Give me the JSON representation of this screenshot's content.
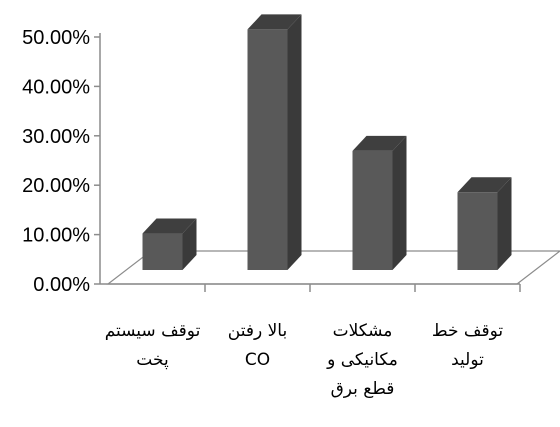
{
  "chart_data": {
    "type": "bar",
    "style": "3d-column",
    "categories": [
      [
        "توقف سیستم",
        "پخت"
      ],
      [
        "بالا رفتن",
        "CO"
      ],
      [
        "مشکلات",
        "مکانیکی و",
        "قطع برق"
      ],
      [
        "توقف خط",
        "تولید"
      ]
    ],
    "values": [
      7.5,
      49.5,
      24.5,
      16.0
    ],
    "ylim": [
      0,
      50
    ],
    "yticks": [
      "0.00%",
      "10.00%",
      "20.00%",
      "30.00%",
      "40.00%",
      "50.00%"
    ],
    "grid": false,
    "legend": "none",
    "colors": {
      "bar_front": "#595959",
      "bar_side": "#3a3a3a",
      "bar_top": "#3f3f3f",
      "floor": "#ffffff",
      "axis": "#8c8c8c"
    }
  }
}
